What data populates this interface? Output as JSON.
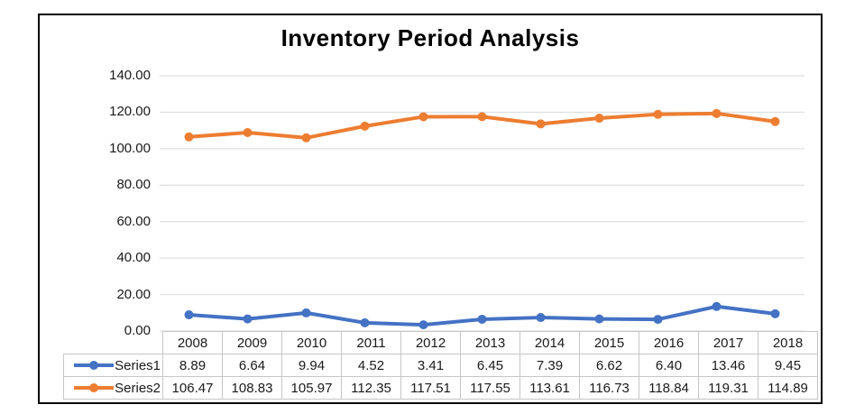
{
  "chart_data": {
    "type": "line",
    "title": "Inventory Period Analysis",
    "categories": [
      "2008",
      "2009",
      "2010",
      "2011",
      "2012",
      "2013",
      "2014",
      "2015",
      "2016",
      "2017",
      "2018"
    ],
    "series": [
      {
        "name": "Series1",
        "color": "#4472C4",
        "marker": "circle",
        "values": [
          8.89,
          6.64,
          9.94,
          4.52,
          3.41,
          6.45,
          7.39,
          6.62,
          6.4,
          13.46,
          9.45
        ]
      },
      {
        "name": "Series2",
        "color": "#ED7D31",
        "marker": "circle",
        "values": [
          106.47,
          108.83,
          105.97,
          112.35,
          117.51,
          117.55,
          113.61,
          116.73,
          118.84,
          119.31,
          114.89
        ]
      }
    ],
    "xlabel": "",
    "ylabel": "",
    "ylim": [
      0,
      140
    ],
    "ytick_step": 20,
    "yticks": [
      "0.00",
      "20.00",
      "40.00",
      "60.00",
      "80.00",
      "100.00",
      "120.00",
      "140.00"
    ],
    "grid": "horizontal",
    "legend_position": "data-table-left",
    "value_decimals": 2
  },
  "colors": {
    "gridline": "#D9D9D9",
    "table_border": "#C6C6C6",
    "text": "#1a1a1a",
    "title_text": "#000000",
    "frame_border": "#000000",
    "background": "#FFFFFF"
  }
}
